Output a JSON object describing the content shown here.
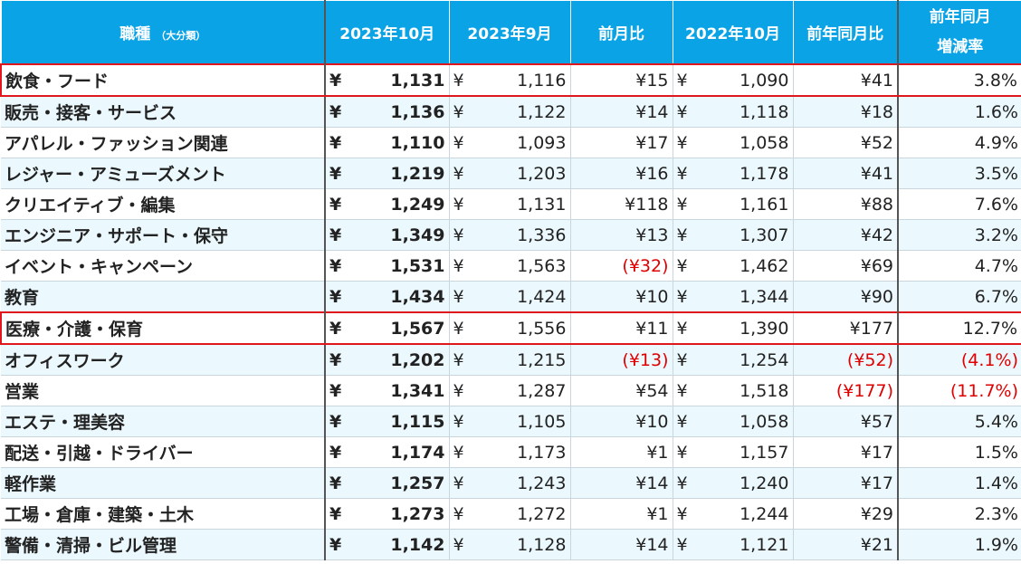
{
  "headers": {
    "category": "職種",
    "category_sub": "（大分類）",
    "oct2023": "2023年10月",
    "sep2023": "2023年9月",
    "mom": "前月比",
    "oct2022": "2022年10月",
    "yoy": "前年同月比",
    "ratio_line1": "前年同月",
    "ratio_line2": "増減率"
  },
  "currency_symbol": "¥",
  "highlight_color": "#e0181e",
  "negative_color": "#e00000",
  "header_color": "#0aa3e6",
  "rows": [
    {
      "category": "飲食・フード",
      "oct2023": "1,131",
      "sep2023": "1,116",
      "mom": "¥15",
      "mom_negative": false,
      "oct2022": "1,090",
      "yoy": "¥41",
      "yoy_negative": false,
      "ratio": "3.8%",
      "ratio_negative": false,
      "highlighted": true
    },
    {
      "category": "販売・接客・サービス",
      "oct2023": "1,136",
      "sep2023": "1,122",
      "mom": "¥14",
      "mom_negative": false,
      "oct2022": "1,118",
      "yoy": "¥18",
      "yoy_negative": false,
      "ratio": "1.6%",
      "ratio_negative": false,
      "highlighted": false
    },
    {
      "category": "アパレル・ファッション関連",
      "oct2023": "1,110",
      "sep2023": "1,093",
      "mom": "¥17",
      "mom_negative": false,
      "oct2022": "1,058",
      "yoy": "¥52",
      "yoy_negative": false,
      "ratio": "4.9%",
      "ratio_negative": false,
      "highlighted": false
    },
    {
      "category": "レジャー・アミューズメント",
      "oct2023": "1,219",
      "sep2023": "1,203",
      "mom": "¥16",
      "mom_negative": false,
      "oct2022": "1,178",
      "yoy": "¥41",
      "yoy_negative": false,
      "ratio": "3.5%",
      "ratio_negative": false,
      "highlighted": false
    },
    {
      "category": "クリエイティブ・編集",
      "oct2023": "1,249",
      "sep2023": "1,131",
      "mom": "¥118",
      "mom_negative": false,
      "oct2022": "1,161",
      "yoy": "¥88",
      "yoy_negative": false,
      "ratio": "7.6%",
      "ratio_negative": false,
      "highlighted": false
    },
    {
      "category": "エンジニア・サポート・保守",
      "oct2023": "1,349",
      "sep2023": "1,336",
      "mom": "¥13",
      "mom_negative": false,
      "oct2022": "1,307",
      "yoy": "¥42",
      "yoy_negative": false,
      "ratio": "3.2%",
      "ratio_negative": false,
      "highlighted": false
    },
    {
      "category": "イベント・キャンペーン",
      "oct2023": "1,531",
      "sep2023": "1,563",
      "mom": "(¥32)",
      "mom_negative": true,
      "oct2022": "1,462",
      "yoy": "¥69",
      "yoy_negative": false,
      "ratio": "4.7%",
      "ratio_negative": false,
      "highlighted": false
    },
    {
      "category": "教育",
      "oct2023": "1,434",
      "sep2023": "1,424",
      "mom": "¥10",
      "mom_negative": false,
      "oct2022": "1,344",
      "yoy": "¥90",
      "yoy_negative": false,
      "ratio": "6.7%",
      "ratio_negative": false,
      "highlighted": false
    },
    {
      "category": "医療・介護・保育",
      "oct2023": "1,567",
      "sep2023": "1,556",
      "mom": "¥11",
      "mom_negative": false,
      "oct2022": "1,390",
      "yoy": "¥177",
      "yoy_negative": false,
      "ratio": "12.7%",
      "ratio_negative": false,
      "highlighted": true
    },
    {
      "category": "オフィスワーク",
      "oct2023": "1,202",
      "sep2023": "1,215",
      "mom": "(¥13)",
      "mom_negative": true,
      "oct2022": "1,254",
      "yoy": "(¥52)",
      "yoy_negative": true,
      "ratio": "(4.1%)",
      "ratio_negative": true,
      "highlighted": false
    },
    {
      "category": "営業",
      "oct2023": "1,341",
      "sep2023": "1,287",
      "mom": "¥54",
      "mom_negative": false,
      "oct2022": "1,518",
      "yoy": "(¥177)",
      "yoy_negative": true,
      "ratio": "(11.7%)",
      "ratio_negative": true,
      "highlighted": false
    },
    {
      "category": "エステ・理美容",
      "oct2023": "1,115",
      "sep2023": "1,105",
      "mom": "¥10",
      "mom_negative": false,
      "oct2022": "1,058",
      "yoy": "¥57",
      "yoy_negative": false,
      "ratio": "5.4%",
      "ratio_negative": false,
      "highlighted": false
    },
    {
      "category": "配送・引越・ドライバー",
      "oct2023": "1,174",
      "sep2023": "1,173",
      "mom": "¥1",
      "mom_negative": false,
      "oct2022": "1,157",
      "yoy": "¥17",
      "yoy_negative": false,
      "ratio": "1.5%",
      "ratio_negative": false,
      "highlighted": false
    },
    {
      "category": "軽作業",
      "oct2023": "1,257",
      "sep2023": "1,243",
      "mom": "¥14",
      "mom_negative": false,
      "oct2022": "1,240",
      "yoy": "¥17",
      "yoy_negative": false,
      "ratio": "1.4%",
      "ratio_negative": false,
      "highlighted": false
    },
    {
      "category": "工場・倉庫・建築・土木",
      "oct2023": "1,273",
      "sep2023": "1,272",
      "mom": "¥1",
      "mom_negative": false,
      "oct2022": "1,244",
      "yoy": "¥29",
      "yoy_negative": false,
      "ratio": "2.3%",
      "ratio_negative": false,
      "highlighted": false
    },
    {
      "category": "警備・清掃・ビル管理",
      "oct2023": "1,142",
      "sep2023": "1,128",
      "mom": "¥14",
      "mom_negative": false,
      "oct2022": "1,121",
      "yoy": "¥21",
      "yoy_negative": false,
      "ratio": "1.9%",
      "ratio_negative": false,
      "highlighted": false
    }
  ]
}
